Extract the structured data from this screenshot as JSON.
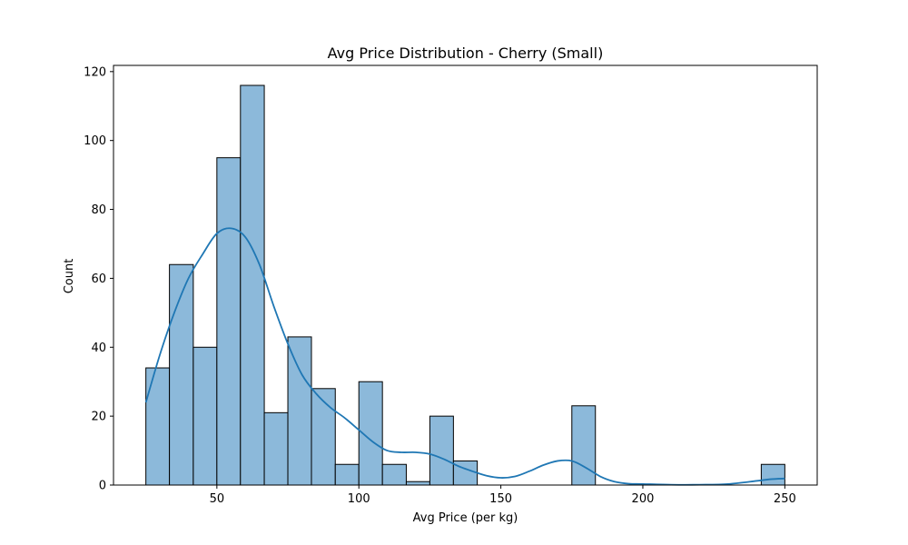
{
  "chart_data": {
    "type": "bar",
    "title": "Avg Price Distribution - Cherry (Small)",
    "xlabel": "Avg Price (per kg)",
    "ylabel": "Count",
    "xlim": [
      13.6,
      261.4
    ],
    "ylim": [
      0,
      121.8
    ],
    "xticks": [
      50,
      100,
      150,
      200,
      250
    ],
    "yticks": [
      0,
      20,
      40,
      60,
      80,
      100,
      120
    ],
    "bin_width": 8.333,
    "bins": [
      {
        "x0": 25.0,
        "x1": 33.3,
        "count": 34
      },
      {
        "x0": 33.3,
        "x1": 41.7,
        "count": 64
      },
      {
        "x0": 41.7,
        "x1": 50.0,
        "count": 40
      },
      {
        "x0": 50.0,
        "x1": 58.3,
        "count": 95
      },
      {
        "x0": 58.3,
        "x1": 66.7,
        "count": 116
      },
      {
        "x0": 66.7,
        "x1": 75.0,
        "count": 21
      },
      {
        "x0": 75.0,
        "x1": 83.3,
        "count": 43
      },
      {
        "x0": 83.3,
        "x1": 91.7,
        "count": 28
      },
      {
        "x0": 91.7,
        "x1": 100.0,
        "count": 6
      },
      {
        "x0": 100.0,
        "x1": 108.3,
        "count": 30
      },
      {
        "x0": 108.3,
        "x1": 116.7,
        "count": 6
      },
      {
        "x0": 116.7,
        "x1": 125.0,
        "count": 1
      },
      {
        "x0": 125.0,
        "x1": 133.3,
        "count": 20
      },
      {
        "x0": 133.3,
        "x1": 141.7,
        "count": 7
      },
      {
        "x0": 175.0,
        "x1": 183.3,
        "count": 23
      },
      {
        "x0": 241.7,
        "x1": 250.0,
        "count": 6
      }
    ],
    "kde": {
      "x": [
        25,
        30,
        35,
        40,
        45,
        50,
        55,
        60,
        65,
        70,
        75,
        80,
        85,
        90,
        95,
        100,
        105,
        110,
        115,
        120,
        125,
        130,
        135,
        140,
        145,
        150,
        155,
        160,
        165,
        170,
        175,
        180,
        185,
        190,
        195,
        200,
        210,
        220,
        230,
        240,
        245,
        250
      ],
      "y": [
        24,
        38,
        50,
        60,
        67,
        73,
        74.5,
        72,
        64,
        52,
        41,
        32,
        26.5,
        22.5,
        19.5,
        16,
        12.5,
        10,
        9.5,
        9.5,
        9,
        7.5,
        5.5,
        4,
        2.7,
        2.1,
        2.5,
        4,
        5.8,
        7,
        7,
        5,
        2.5,
        1,
        0.4,
        0.3,
        0.1,
        0.1,
        0.3,
        1.2,
        1.7,
        1.9
      ]
    },
    "colors": {
      "bar_fill": "#8cb9da",
      "bar_edge": "#000000",
      "kde_line": "#1f77b4"
    },
    "grid": false,
    "legend": "none"
  }
}
